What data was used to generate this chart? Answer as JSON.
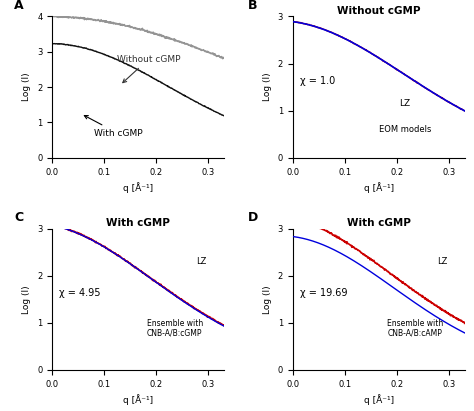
{
  "panel_labels": [
    "A",
    "B",
    "C",
    "D"
  ],
  "xlabel": "q [Å⁻¹]",
  "ylabel": "Log (I)",
  "xlim": [
    0.0,
    0.33
  ],
  "ylim_a": [
    0.0,
    4.0
  ],
  "ylim_bcd": [
    0.0,
    3.0
  ],
  "xticks": [
    0.0,
    0.1,
    0.2,
    0.3
  ],
  "yticks_a": [
    0,
    1,
    2,
    3,
    4
  ],
  "yticks_bcd": [
    0,
    1,
    2,
    3
  ],
  "panelA": {
    "nogmp_color": "#888888",
    "gmp_color": "#111111"
  },
  "panelB": {
    "title": "Without cGMP",
    "chi_text": "χ = 1.0",
    "lz_text": "LZ",
    "eom_text": "EOM models",
    "fit_color": "#0000dd",
    "data_color": "#cc0000"
  },
  "panelC": {
    "title": "With cGMP",
    "chi_text": "χ = 4.95",
    "ensemble_text": "Ensemble with\nCNB-A/B:cGMP",
    "fit_color": "#0000dd",
    "data_color": "#cc0000"
  },
  "panelD": {
    "title": "With cGMP",
    "chi_text": "χ = 19.69",
    "ensemble_text": "Ensemble with\nCNB-A/B:cAMP",
    "fit_color": "#0000dd",
    "data_color": "#cc0000"
  }
}
